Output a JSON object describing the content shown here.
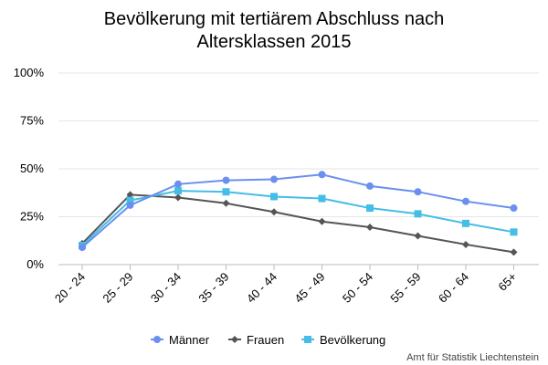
{
  "chart_data": {
    "type": "line",
    "title_lines": [
      "Bevölkerung mit tertiärem Abschluss nach",
      "Altersklassen 2015"
    ],
    "categories": [
      "20 - 24",
      "25 - 29",
      "30 - 34",
      "35 - 39",
      "40 - 44",
      "45 - 49",
      "50 - 54",
      "55 - 59",
      "60 - 64",
      "65+"
    ],
    "y_ticks": [
      "0%",
      "25%",
      "50%",
      "75%",
      "100%"
    ],
    "ylim": [
      0,
      100
    ],
    "grid": true,
    "legend_position": "bottom",
    "series": [
      {
        "name": "Männer",
        "color": "#6a8ff0",
        "marker": "circle",
        "values": [
          9,
          31,
          42,
          44,
          44.5,
          47,
          41,
          38,
          33,
          29.5
        ]
      },
      {
        "name": "Frauen",
        "color": "#555555",
        "marker": "diamond",
        "values": [
          11,
          36.5,
          35,
          32,
          27.5,
          22.5,
          19.5,
          15,
          10.5,
          6.5
        ]
      },
      {
        "name": "Bevölkerung",
        "color": "#45bde6",
        "marker": "square",
        "values": [
          10,
          33.5,
          38.5,
          38,
          35.5,
          34.5,
          29.5,
          26.5,
          21.5,
          17
        ]
      }
    ],
    "source": "Amt für Statistik Liechtenstein"
  }
}
